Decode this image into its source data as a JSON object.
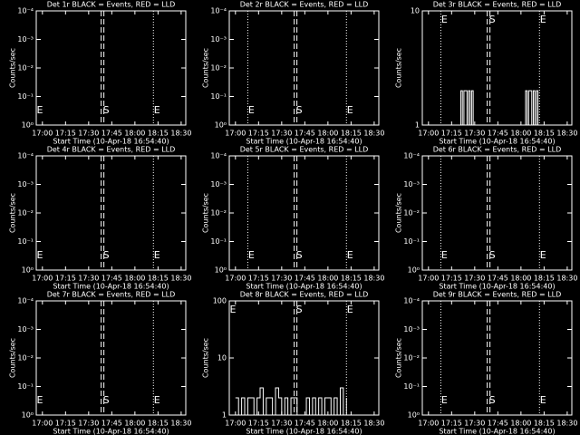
{
  "chart_data": [
    {
      "type": "line",
      "title": "Det 1r BLACK = Events, RED = LLD",
      "xlabel": "Start Time (10-Apr-18 16:54:40)",
      "ylabel": "Counts/sec",
      "xlim": [
        "16:56",
        "18:33"
      ],
      "xticks": [
        "17:00",
        "17:15",
        "17:30",
        "17:45",
        "18:00",
        "18:15",
        "18:30"
      ],
      "ylim": [
        1,
        0.0001
      ],
      "log_scale": true,
      "yticks": [
        {
          "value": 1,
          "label": "10⁰"
        },
        {
          "value": 0.1,
          "label": "10⁻¹"
        },
        {
          "value": 0.01,
          "label": "10⁻²"
        },
        {
          "value": 0.001,
          "label": "10⁻³"
        },
        {
          "value": 0.0001,
          "label": "10⁻⁴"
        }
      ],
      "markers": [
        {
          "time": "16:56",
          "style": "dotted",
          "label": "E"
        },
        {
          "time": "17:39",
          "style": "dashed",
          "label": "S"
        },
        {
          "time": "18:12",
          "style": "dotted",
          "label": "E"
        }
      ],
      "marker_label_position": "bottom"
    },
    {
      "type": "line",
      "title": "Det 2r BLACK = Events, RED = LLD",
      "xlabel": "Start Time (10-Apr-18 16:54:40)",
      "ylabel": "Counts/sec",
      "xlim": [
        "16:56",
        "18:33"
      ],
      "xticks": [
        "17:00",
        "17:15",
        "17:30",
        "17:45",
        "18:00",
        "18:15",
        "18:30"
      ],
      "ylim": [
        1,
        0.0001
      ],
      "log_scale": true,
      "yticks": [
        {
          "value": 1,
          "label": "10⁰"
        },
        {
          "value": 0.1,
          "label": "10⁻¹"
        },
        {
          "value": 0.01,
          "label": "10⁻²"
        },
        {
          "value": 0.001,
          "label": "10⁻³"
        },
        {
          "value": 0.0001,
          "label": "10⁻⁴"
        }
      ],
      "markers": [
        {
          "time": "17:08",
          "style": "dotted",
          "label": "E"
        },
        {
          "time": "17:39",
          "style": "dashed",
          "label": "S"
        },
        {
          "time": "18:12",
          "style": "dotted",
          "label": "E"
        }
      ],
      "marker_label_position": "bottom"
    },
    {
      "type": "line",
      "title": "Det 3r BLACK = Events, RED = LLD",
      "xlabel": "Start Time (10-Apr-18 16:54:40)",
      "ylabel": "Counts/sec",
      "xlim": [
        "16:56",
        "18:33"
      ],
      "xticks": [
        "17:00",
        "17:15",
        "17:30",
        "17:45",
        "18:00",
        "18:15",
        "18:30"
      ],
      "ylim": [
        1,
        10
      ],
      "log_scale": true,
      "yticks": [
        1,
        10
      ],
      "markers": [
        {
          "time": "17:08",
          "style": "dotted",
          "label": "E"
        },
        {
          "time": "17:39",
          "style": "dashed",
          "label": "S"
        },
        {
          "time": "18:12",
          "style": "dotted",
          "label": "E"
        }
      ],
      "marker_label_position": "top",
      "x": [
        "17:20",
        "17:21",
        "17:22",
        "17:23",
        "17:24",
        "17:25",
        "17:26",
        "17:27",
        "17:28",
        "17:29",
        "17:30",
        "18:02",
        "18:03",
        "18:04",
        "18:05",
        "18:06",
        "18:07",
        "18:08",
        "18:09",
        "18:10",
        "18:11"
      ],
      "series": [
        {
          "color": "#ffffff",
          "values": [
            1,
            2,
            1,
            2,
            2,
            1,
            2,
            1,
            2,
            1,
            null,
            1,
            2,
            1,
            2,
            2,
            1,
            2,
            1,
            2,
            1
          ]
        }
      ]
    },
    {
      "type": "line",
      "title": "Det 4r BLACK = Events, RED = LLD",
      "xlabel": "Start Time (10-Apr-18 16:54:40)",
      "ylabel": "Counts/sec",
      "xlim": [
        "16:56",
        "18:33"
      ],
      "xticks": [
        "17:00",
        "17:15",
        "17:30",
        "17:45",
        "18:00",
        "18:15",
        "18:30"
      ],
      "ylim": [
        1,
        0.0001
      ],
      "log_scale": true,
      "yticks": [
        {
          "value": 1,
          "label": "10⁰"
        },
        {
          "value": 0.1,
          "label": "10⁻¹"
        },
        {
          "value": 0.01,
          "label": "10⁻²"
        },
        {
          "value": 0.001,
          "label": "10⁻³"
        },
        {
          "value": 0.0001,
          "label": "10⁻⁴"
        }
      ],
      "markers": [
        {
          "time": "16:56",
          "style": "dotted",
          "label": "E"
        },
        {
          "time": "17:39",
          "style": "dashed",
          "label": "S"
        },
        {
          "time": "18:12",
          "style": "dotted",
          "label": "E"
        }
      ],
      "marker_label_position": "bottom"
    },
    {
      "type": "line",
      "title": "Det 5r BLACK = Events, RED = LLD",
      "xlabel": "Start Time (10-Apr-18 16:54:40)",
      "ylabel": "Counts/sec",
      "xlim": [
        "16:56",
        "18:33"
      ],
      "xticks": [
        "17:00",
        "17:15",
        "17:30",
        "17:45",
        "18:00",
        "18:15",
        "18:30"
      ],
      "ylim": [
        1,
        0.0001
      ],
      "log_scale": true,
      "yticks": [
        {
          "value": 1,
          "label": "10⁰"
        },
        {
          "value": 0.1,
          "label": "10⁻¹"
        },
        {
          "value": 0.01,
          "label": "10⁻²"
        },
        {
          "value": 0.001,
          "label": "10⁻³"
        },
        {
          "value": 0.0001,
          "label": "10⁻⁴"
        }
      ],
      "markers": [
        {
          "time": "17:08",
          "style": "dotted",
          "label": "E"
        },
        {
          "time": "17:39",
          "style": "dashed",
          "label": "S"
        },
        {
          "time": "18:12",
          "style": "dotted",
          "label": "E"
        }
      ],
      "marker_label_position": "bottom"
    },
    {
      "type": "line",
      "title": "Det 6r BLACK = Events, RED = LLD",
      "xlabel": "Start Time (10-Apr-18 16:54:40)",
      "ylabel": "Counts/sec",
      "xlim": [
        "16:56",
        "18:33"
      ],
      "xticks": [
        "17:00",
        "17:15",
        "17:30",
        "17:45",
        "18:00",
        "18:15",
        "18:30"
      ],
      "ylim": [
        1,
        0.0001
      ],
      "log_scale": true,
      "yticks": [
        {
          "value": 1,
          "label": "10⁰"
        },
        {
          "value": 0.1,
          "label": "10⁻¹"
        },
        {
          "value": 0.01,
          "label": "10⁻²"
        },
        {
          "value": 0.001,
          "label": "10⁻³"
        },
        {
          "value": 0.0001,
          "label": "10⁻⁴"
        }
      ],
      "markers": [
        {
          "time": "17:08",
          "style": "dotted",
          "label": "E"
        },
        {
          "time": "17:39",
          "style": "dashed",
          "label": "S"
        },
        {
          "time": "18:12",
          "style": "dotted",
          "label": "E"
        }
      ],
      "marker_label_position": "bottom"
    },
    {
      "type": "line",
      "title": "Det 7r BLACK = Events, RED = LLD",
      "xlabel": "Start Time (10-Apr-18 16:54:40)",
      "ylabel": "Counts/sec",
      "xlim": [
        "16:56",
        "18:33"
      ],
      "xticks": [
        "17:00",
        "17:15",
        "17:30",
        "17:45",
        "18:00",
        "18:15",
        "18:30"
      ],
      "ylim": [
        1,
        0.0001
      ],
      "log_scale": true,
      "yticks": [
        {
          "value": 1,
          "label": "10⁰"
        },
        {
          "value": 0.1,
          "label": "10⁻¹"
        },
        {
          "value": 0.01,
          "label": "10⁻²"
        },
        {
          "value": 0.001,
          "label": "10⁻³"
        },
        {
          "value": 0.0001,
          "label": "10⁻⁴"
        }
      ],
      "markers": [
        {
          "time": "16:56",
          "style": "dotted",
          "label": "E"
        },
        {
          "time": "17:39",
          "style": "dashed",
          "label": "S"
        },
        {
          "time": "18:12",
          "style": "dotted",
          "label": "E"
        }
      ],
      "marker_label_position": "bottom"
    },
    {
      "type": "line",
      "title": "Det 8r BLACK = Events, RED = LLD",
      "xlabel": "Start Time (10-Apr-18 16:54:40)",
      "ylabel": "Counts/sec",
      "xlim": [
        "16:56",
        "18:33"
      ],
      "xticks": [
        "17:00",
        "17:15",
        "17:30",
        "17:45",
        "18:00",
        "18:15",
        "18:30"
      ],
      "ylim": [
        1,
        100
      ],
      "log_scale": true,
      "yticks": [
        1,
        10,
        100
      ],
      "markers": [
        {
          "time": "16:56",
          "style": "dotted",
          "label": "E"
        },
        {
          "time": "17:39",
          "style": "dashed",
          "label": "S"
        },
        {
          "time": "18:12",
          "style": "dotted",
          "label": "E"
        }
      ],
      "marker_label_position": "top",
      "x": [
        "17:00",
        "17:02",
        "17:04",
        "17:06",
        "17:08",
        "17:10",
        "17:12",
        "17:14",
        "17:16",
        "17:18",
        "17:20",
        "17:22",
        "17:24",
        "17:26",
        "17:28",
        "17:30",
        "17:32",
        "17:34",
        "17:36",
        "17:38",
        "17:40",
        "17:42",
        "17:44",
        "17:46",
        "17:48",
        "17:50",
        "17:52",
        "17:54",
        "17:56",
        "17:58",
        "18:00",
        "18:02",
        "18:04",
        "18:06",
        "18:08",
        "18:10",
        "18:12"
      ],
      "series": [
        {
          "color": "#ffffff",
          "values": [
            2,
            1,
            2,
            1,
            2,
            2,
            1,
            2,
            3,
            1,
            2,
            2,
            1,
            3,
            2,
            1,
            2,
            1,
            2,
            2,
            1,
            null,
            1,
            2,
            1,
            2,
            1,
            2,
            1,
            2,
            2,
            1,
            2,
            1,
            3,
            1,
            2
          ]
        }
      ]
    },
    {
      "type": "line",
      "title": "Det 9r BLACK = Events, RED = LLD",
      "xlabel": "Start Time (10-Apr-18 16:54:40)",
      "ylabel": "Counts/sec",
      "xlim": [
        "16:56",
        "18:33"
      ],
      "xticks": [
        "17:00",
        "17:15",
        "17:30",
        "17:45",
        "18:00",
        "18:15",
        "18:30"
      ],
      "ylim": [
        1,
        0.0001
      ],
      "log_scale": true,
      "yticks": [
        {
          "value": 1,
          "label": "10⁰"
        },
        {
          "value": 0.1,
          "label": "10⁻¹"
        },
        {
          "value": 0.01,
          "label": "10⁻²"
        },
        {
          "value": 0.001,
          "label": "10⁻³"
        },
        {
          "value": 0.0001,
          "label": "10⁻⁴"
        }
      ],
      "markers": [
        {
          "time": "17:08",
          "style": "dotted",
          "label": "E"
        },
        {
          "time": "17:39",
          "style": "dashed",
          "label": "S"
        },
        {
          "time": "18:12",
          "style": "dotted",
          "label": "E"
        }
      ],
      "marker_label_position": "bottom"
    }
  ]
}
